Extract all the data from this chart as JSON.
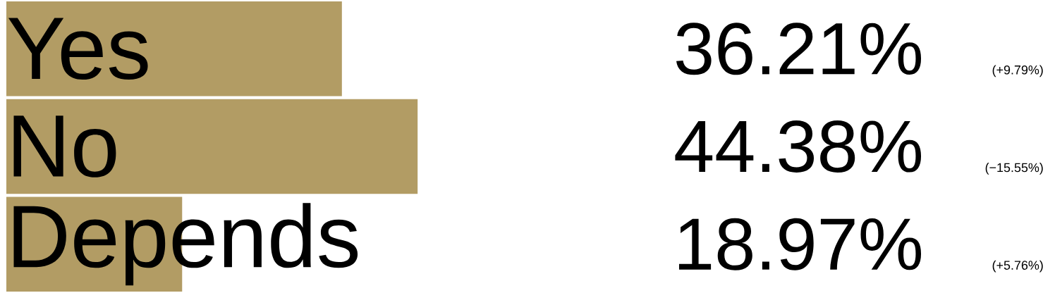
{
  "chart_data": {
    "type": "bar",
    "orientation": "horizontal",
    "categories": [
      "Yes",
      "No",
      "Depends"
    ],
    "values": [
      36.21,
      44.38,
      18.97
    ],
    "value_labels": [
      "36.21%",
      "44.38%",
      "18.97%"
    ],
    "annotations": [
      "(+9.79%)",
      "(−15.55%)",
      "(+5.76%)"
    ],
    "color": "#b29c64"
  }
}
